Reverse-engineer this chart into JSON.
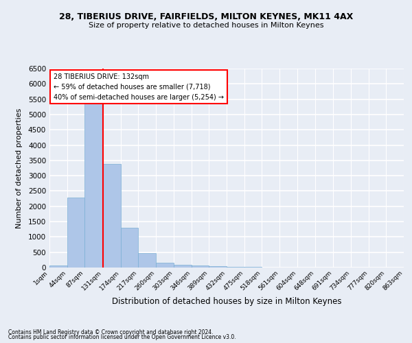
{
  "title1": "28, TIBERIUS DRIVE, FAIRFIELDS, MILTON KEYNES, MK11 4AX",
  "title2": "Size of property relative to detached houses in Milton Keynes",
  "xlabel": "Distribution of detached houses by size in Milton Keynes",
  "ylabel": "Number of detached properties",
  "footer1": "Contains HM Land Registry data © Crown copyright and database right 2024.",
  "footer2": "Contains public sector information licensed under the Open Government Licence v3.0.",
  "annotation_line1": "28 TIBERIUS DRIVE: 132sqm",
  "annotation_line2": "← 59% of detached houses are smaller (7,718)",
  "annotation_line3": "40% of semi-detached houses are larger (5,254) →",
  "bar_edges": [
    1,
    44,
    87,
    131,
    174,
    217,
    260,
    303,
    346,
    389,
    432,
    475,
    518,
    561,
    604,
    648,
    691,
    734,
    777,
    820,
    863
  ],
  "bar_heights": [
    70,
    2280,
    5420,
    3380,
    1310,
    480,
    155,
    90,
    70,
    40,
    25,
    15,
    10,
    5,
    3,
    2,
    2,
    1,
    1,
    1
  ],
  "bar_color": "#aec6e8",
  "bar_edgecolor": "#7aafd4",
  "marker_x": 131,
  "marker_color": "red",
  "ylim": [
    0,
    6500
  ],
  "yticks": [
    0,
    500,
    1000,
    1500,
    2000,
    2500,
    3000,
    3500,
    4000,
    4500,
    5000,
    5500,
    6000,
    6500
  ],
  "bg_color": "#e8edf5",
  "grid_color": "white",
  "annotation_box_color": "white",
  "annotation_box_edgecolor": "red",
  "xlim_min": 1,
  "xlim_max": 863
}
